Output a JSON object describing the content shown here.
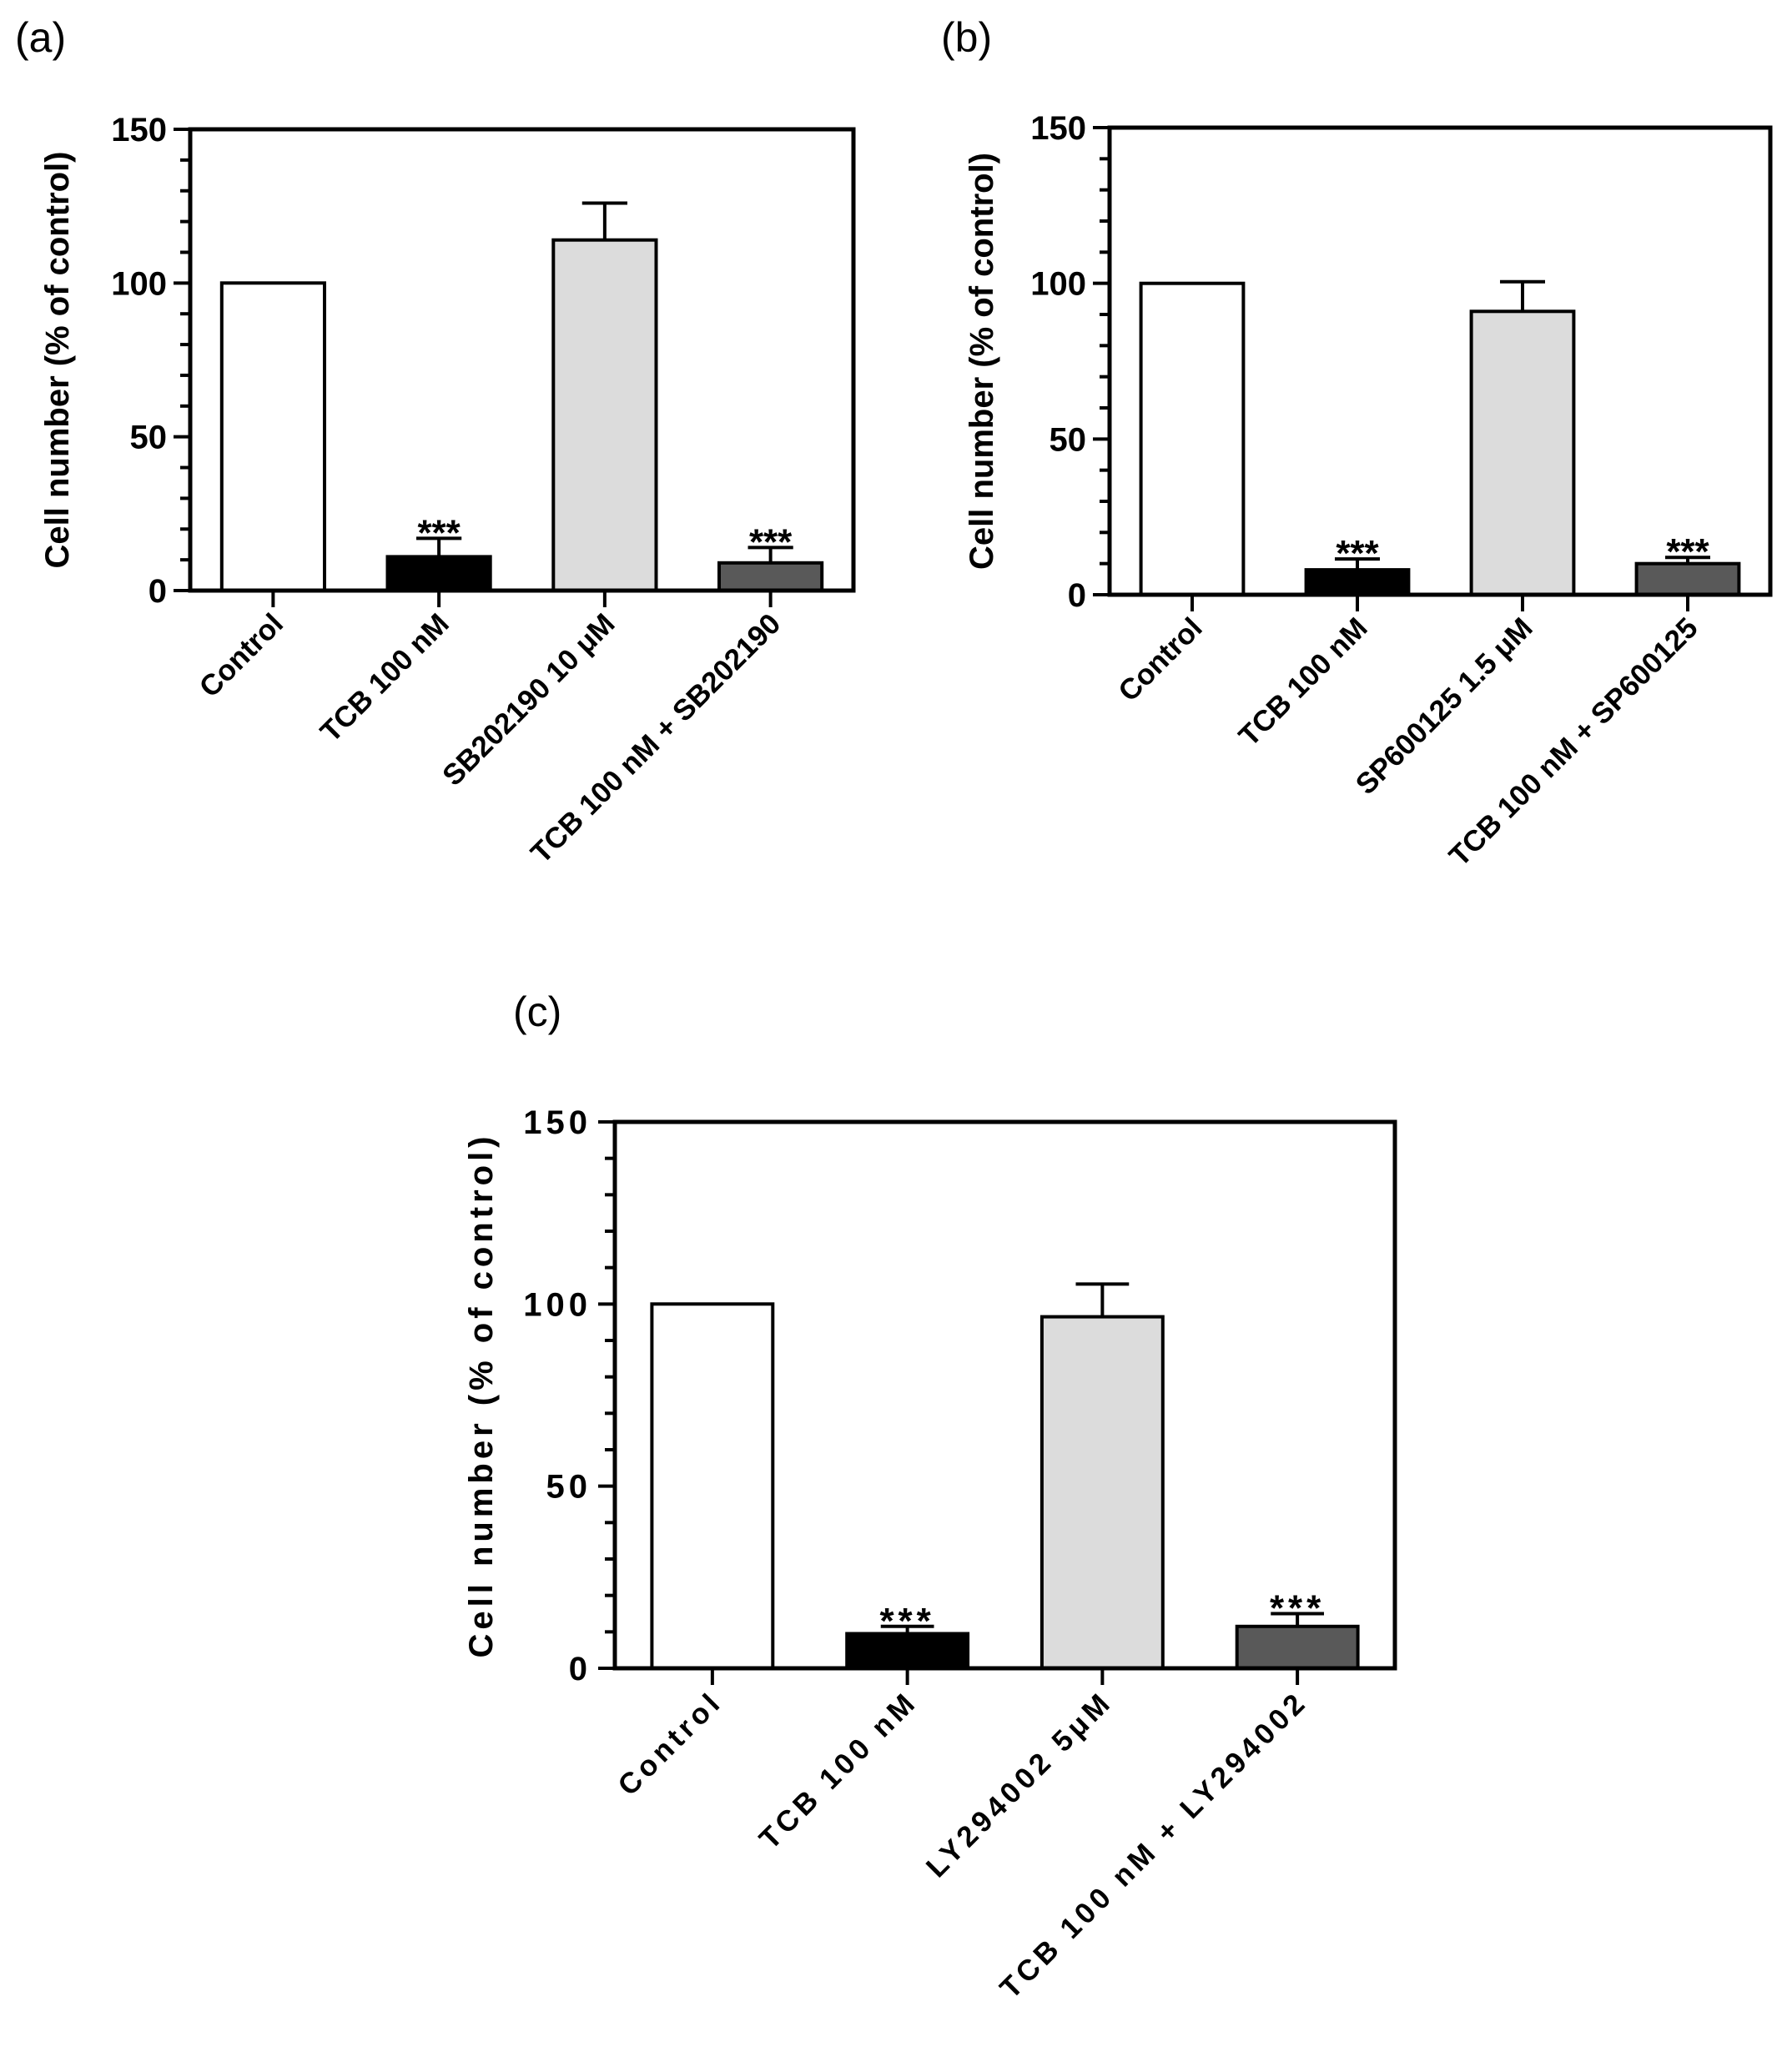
{
  "figure": {
    "panels": [
      "(a)",
      "(b)",
      "(c)"
    ]
  },
  "colors": {
    "control": "#ffffff",
    "tcb": "#000000",
    "inhibitor": "#dcdcdc",
    "combo": "#595959",
    "axis": "#000000"
  },
  "chart_data": [
    {
      "panel": "(a)",
      "type": "bar",
      "ylabel": "Cell number (% of control)",
      "xlabel": "",
      "ylim": [
        0,
        150
      ],
      "yticks": [
        "0",
        "50",
        "100",
        "150"
      ],
      "categories": [
        "Control",
        "TCB 100 nM",
        "SB202190 10 μM",
        "TCB 100 nM + SB202190"
      ],
      "values": [
        100,
        11,
        114,
        9
      ],
      "errors": [
        0,
        6,
        12,
        5
      ],
      "significance": [
        "",
        "***",
        "",
        "***"
      ]
    },
    {
      "panel": "(b)",
      "type": "bar",
      "ylabel": "Cell number (% of control)",
      "xlabel": "",
      "ylim": [
        0,
        150
      ],
      "yticks": [
        "0",
        "50",
        "100",
        "150"
      ],
      "categories": [
        "Control",
        "TCB 100 nM",
        "SP600125 1.5 μM",
        "TCB 100 nM + SP600125"
      ],
      "values": [
        100,
        8,
        91,
        10
      ],
      "errors": [
        0,
        3.5,
        9.5,
        2
      ],
      "significance": [
        "",
        "***",
        "",
        "***"
      ]
    },
    {
      "panel": "(c)",
      "type": "bar",
      "ylabel": "Cell number (% of control)",
      "xlabel": "",
      "ylim": [
        0,
        150
      ],
      "yticks": [
        "0",
        "50",
        "100",
        "150"
      ],
      "categories": [
        "Control",
        "TCB 100 nM",
        "LY294002 5μM",
        "TCB 100 nM + LY294002"
      ],
      "values": [
        100,
        9.5,
        96.5,
        11.5
      ],
      "errors": [
        0,
        2,
        9,
        3.5
      ],
      "significance": [
        "",
        "***",
        "",
        "***"
      ]
    }
  ]
}
